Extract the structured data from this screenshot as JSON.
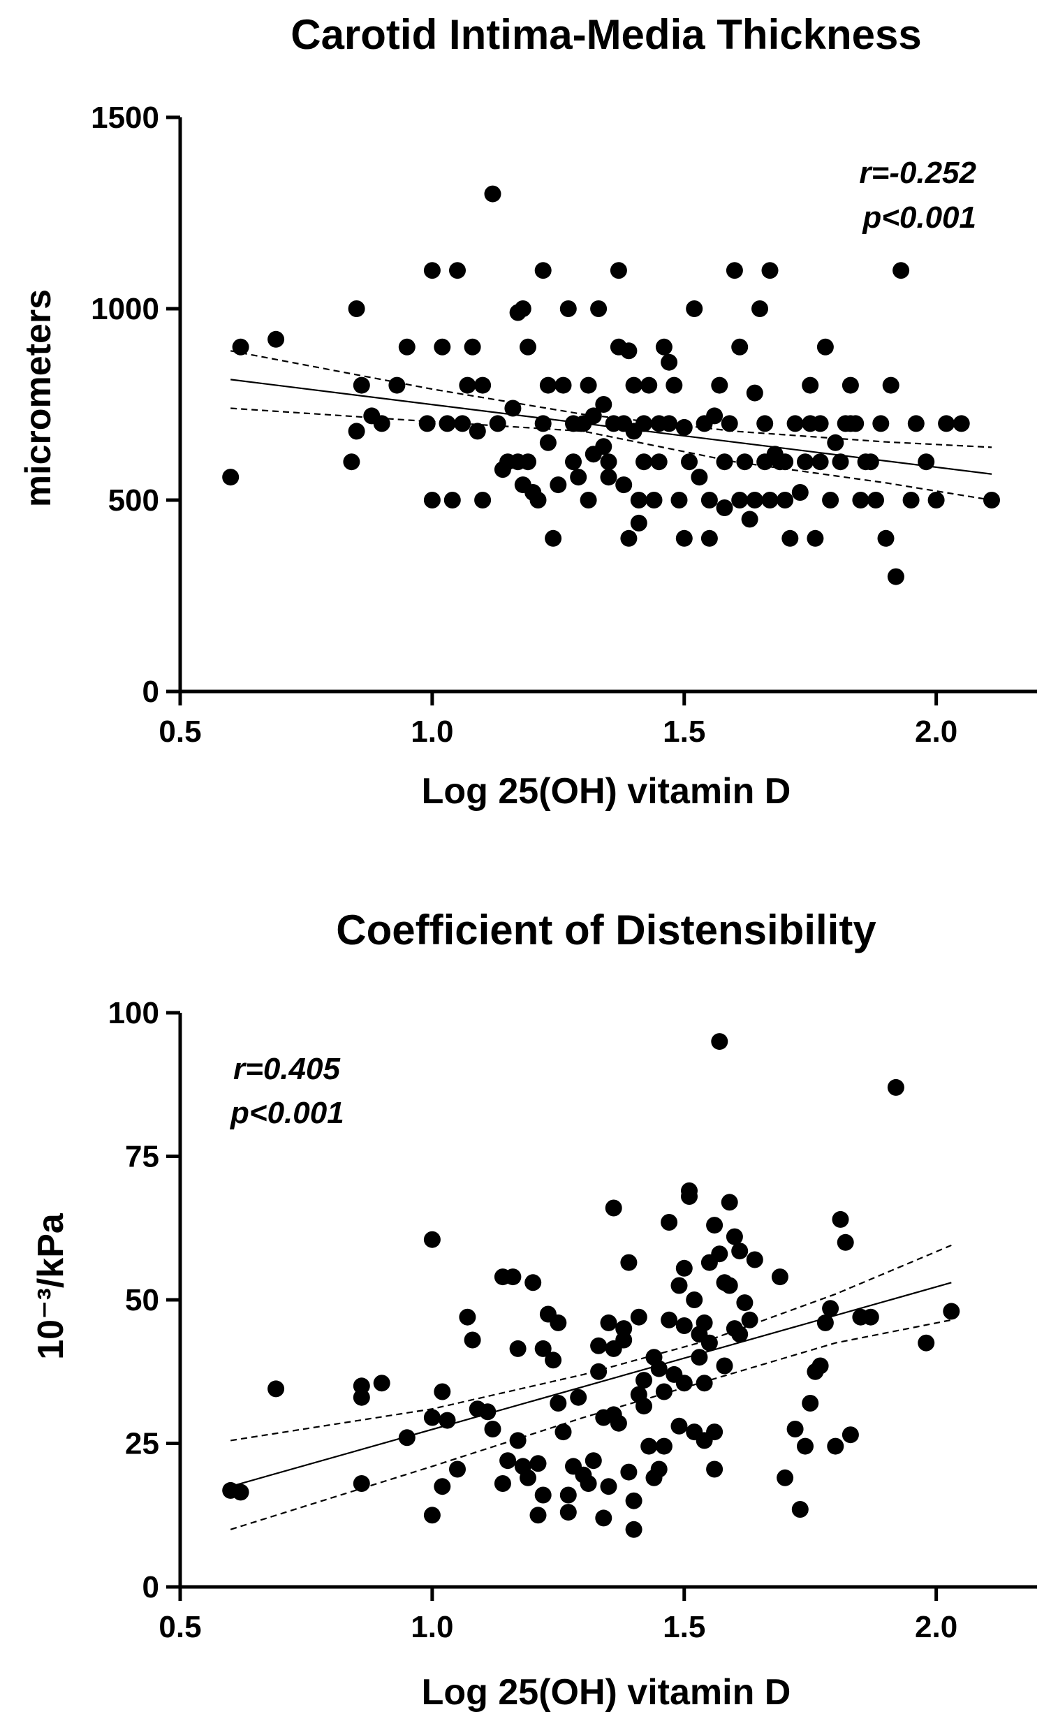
{
  "chart_data": [
    {
      "id": "cimt",
      "type": "scatter",
      "title": "Carotid Intima-Media Thickness",
      "xlabel": "Log 25(OH) vitamin D",
      "ylabel": "micrometers",
      "xlim": [
        0.5,
        2.2
      ],
      "ylim": [
        0,
        1500
      ],
      "xticks": [
        0.5,
        1.0,
        1.5,
        2.0
      ],
      "xtick_labels": [
        "0.5",
        "1.0",
        "1.5",
        "2.0"
      ],
      "yticks": [
        0,
        500,
        1000,
        1500
      ],
      "ytick_labels": [
        "0",
        "500",
        "1000",
        "1500"
      ],
      "annotation": {
        "r": "r=-0.252",
        "p": "p<0.001",
        "position": "top-right"
      },
      "fit": {
        "x": [
          0.6,
          2.11
        ],
        "y": [
          815,
          568
        ]
      },
      "ci_upper": [
        [
          0.6,
          890
        ],
        [
          1.0,
          790
        ],
        [
          1.3,
          724
        ],
        [
          1.6,
          680
        ],
        [
          1.9,
          652
        ],
        [
          2.11,
          638
        ]
      ],
      "ci_lower": [
        [
          0.6,
          740
        ],
        [
          1.0,
          705
        ],
        [
          1.3,
          680
        ],
        [
          1.6,
          600
        ],
        [
          1.9,
          545
        ],
        [
          2.11,
          500
        ]
      ],
      "points": [
        [
          0.6,
          560
        ],
        [
          0.62,
          900
        ],
        [
          0.69,
          920
        ],
        [
          0.84,
          600
        ],
        [
          0.85,
          680
        ],
        [
          0.85,
          1000
        ],
        [
          0.86,
          800
        ],
        [
          0.88,
          720
        ],
        [
          0.9,
          700
        ],
        [
          0.93,
          800
        ],
        [
          0.95,
          900
        ],
        [
          0.99,
          700
        ],
        [
          1.0,
          1100
        ],
        [
          1.0,
          500
        ],
        [
          1.02,
          900
        ],
        [
          1.03,
          700
        ],
        [
          1.04,
          500
        ],
        [
          1.05,
          1100
        ],
        [
          1.06,
          700
        ],
        [
          1.07,
          800
        ],
        [
          1.08,
          900
        ],
        [
          1.09,
          680
        ],
        [
          1.1,
          800
        ],
        [
          1.1,
          500
        ],
        [
          1.12,
          1300
        ],
        [
          1.13,
          700
        ],
        [
          1.14,
          580
        ],
        [
          1.15,
          600
        ],
        [
          1.16,
          740
        ],
        [
          1.17,
          990
        ],
        [
          1.17,
          600
        ],
        [
          1.18,
          540
        ],
        [
          1.18,
          1000
        ],
        [
          1.19,
          900
        ],
        [
          1.19,
          600
        ],
        [
          1.2,
          520
        ],
        [
          1.21,
          500
        ],
        [
          1.22,
          1100
        ],
        [
          1.22,
          700
        ],
        [
          1.23,
          800
        ],
        [
          1.23,
          650
        ],
        [
          1.24,
          400
        ],
        [
          1.25,
          540
        ],
        [
          1.26,
          800
        ],
        [
          1.27,
          1000
        ],
        [
          1.28,
          600
        ],
        [
          1.28,
          700
        ],
        [
          1.29,
          560
        ],
        [
          1.3,
          700
        ],
        [
          1.31,
          500
        ],
        [
          1.31,
          800
        ],
        [
          1.32,
          620
        ],
        [
          1.32,
          720
        ],
        [
          1.33,
          1000
        ],
        [
          1.34,
          750
        ],
        [
          1.34,
          640
        ],
        [
          1.35,
          560
        ],
        [
          1.35,
          600
        ],
        [
          1.36,
          700
        ],
        [
          1.37,
          1100
        ],
        [
          1.37,
          900
        ],
        [
          1.38,
          700
        ],
        [
          1.38,
          540
        ],
        [
          1.39,
          400
        ],
        [
          1.39,
          890
        ],
        [
          1.4,
          800
        ],
        [
          1.4,
          680
        ],
        [
          1.41,
          500
        ],
        [
          1.41,
          440
        ],
        [
          1.42,
          600
        ],
        [
          1.42,
          700
        ],
        [
          1.43,
          800
        ],
        [
          1.44,
          500
        ],
        [
          1.45,
          700
        ],
        [
          1.45,
          600
        ],
        [
          1.46,
          900
        ],
        [
          1.47,
          700
        ],
        [
          1.47,
          860
        ],
        [
          1.48,
          800
        ],
        [
          1.49,
          500
        ],
        [
          1.5,
          400
        ],
        [
          1.5,
          690
        ],
        [
          1.51,
          600
        ],
        [
          1.52,
          1000
        ],
        [
          1.53,
          560
        ],
        [
          1.54,
          700
        ],
        [
          1.55,
          500
        ],
        [
          1.55,
          400
        ],
        [
          1.56,
          720
        ],
        [
          1.57,
          800
        ],
        [
          1.58,
          600
        ],
        [
          1.58,
          480
        ],
        [
          1.59,
          700
        ],
        [
          1.6,
          1100
        ],
        [
          1.61,
          500
        ],
        [
          1.61,
          900
        ],
        [
          1.62,
          600
        ],
        [
          1.63,
          450
        ],
        [
          1.64,
          780
        ],
        [
          1.64,
          500
        ],
        [
          1.65,
          1000
        ],
        [
          1.66,
          600
        ],
        [
          1.66,
          700
        ],
        [
          1.67,
          1100
        ],
        [
          1.67,
          500
        ],
        [
          1.68,
          620
        ],
        [
          1.69,
          600
        ],
        [
          1.7,
          600
        ],
        [
          1.7,
          500
        ],
        [
          1.71,
          400
        ],
        [
          1.72,
          700
        ],
        [
          1.73,
          520
        ],
        [
          1.74,
          600
        ],
        [
          1.75,
          700
        ],
        [
          1.75,
          800
        ],
        [
          1.76,
          400
        ],
        [
          1.77,
          700
        ],
        [
          1.77,
          600
        ],
        [
          1.78,
          900
        ],
        [
          1.79,
          500
        ],
        [
          1.8,
          650
        ],
        [
          1.81,
          600
        ],
        [
          1.82,
          700
        ],
        [
          1.83,
          700
        ],
        [
          1.83,
          800
        ],
        [
          1.84,
          700
        ],
        [
          1.85,
          500
        ],
        [
          1.86,
          600
        ],
        [
          1.87,
          600
        ],
        [
          1.88,
          500
        ],
        [
          1.89,
          700
        ],
        [
          1.9,
          400
        ],
        [
          1.91,
          800
        ],
        [
          1.92,
          300
        ],
        [
          1.93,
          1100
        ],
        [
          1.95,
          500
        ],
        [
          1.96,
          700
        ],
        [
          1.98,
          600
        ],
        [
          2.0,
          500
        ],
        [
          2.02,
          700
        ],
        [
          2.05,
          700
        ],
        [
          2.11,
          500
        ]
      ]
    },
    {
      "id": "cod",
      "type": "scatter",
      "title": "Coefficient of Distensibility",
      "xlabel": "Log 25(OH) vitamin D",
      "ylabel": "10⁻³/kPa",
      "xlim": [
        0.5,
        2.2
      ],
      "ylim": [
        0,
        100
      ],
      "xticks": [
        0.5,
        1.0,
        1.5,
        2.0
      ],
      "xtick_labels": [
        "0.5",
        "1.0",
        "1.5",
        "2.0"
      ],
      "yticks": [
        0,
        25,
        50,
        75,
        100
      ],
      "ytick_labels": [
        "0",
        "25",
        "50",
        "75",
        "100"
      ],
      "annotation": {
        "r": "r=0.405",
        "p": "p<0.001",
        "position": "top-left"
      },
      "fit": {
        "x": [
          0.6,
          2.03
        ],
        "y": [
          17.5,
          53
        ]
      },
      "ci_upper": [
        [
          0.6,
          25.5
        ],
        [
          1.0,
          31
        ],
        [
          1.3,
          37
        ],
        [
          1.55,
          43
        ],
        [
          1.8,
          51
        ],
        [
          2.03,
          59.5
        ]
      ],
      "ci_lower": [
        [
          0.6,
          10
        ],
        [
          1.0,
          21
        ],
        [
          1.3,
          29.5
        ],
        [
          1.55,
          36
        ],
        [
          1.8,
          42.5
        ],
        [
          2.03,
          46.5
        ]
      ],
      "points": [
        [
          0.6,
          16.8
        ],
        [
          0.62,
          16.5
        ],
        [
          0.69,
          34.5
        ],
        [
          0.86,
          35
        ],
        [
          0.86,
          33
        ],
        [
          0.86,
          18
        ],
        [
          0.9,
          35.5
        ],
        [
          0.95,
          26
        ],
        [
          1.0,
          60.5
        ],
        [
          1.0,
          29.5
        ],
        [
          1.0,
          12.5
        ],
        [
          1.02,
          34
        ],
        [
          1.02,
          17.5
        ],
        [
          1.03,
          29
        ],
        [
          1.05,
          20.5
        ],
        [
          1.07,
          47
        ],
        [
          1.08,
          43
        ],
        [
          1.09,
          31
        ],
        [
          1.11,
          30.5
        ],
        [
          1.12,
          27.5
        ],
        [
          1.14,
          54
        ],
        [
          1.14,
          18
        ],
        [
          1.15,
          22
        ],
        [
          1.16,
          54
        ],
        [
          1.17,
          41.5
        ],
        [
          1.17,
          25.5
        ],
        [
          1.18,
          21
        ],
        [
          1.19,
          19
        ],
        [
          1.2,
          53
        ],
        [
          1.21,
          21.5
        ],
        [
          1.21,
          12.5
        ],
        [
          1.22,
          16
        ],
        [
          1.22,
          41.5
        ],
        [
          1.23,
          47.5
        ],
        [
          1.24,
          39.5
        ],
        [
          1.25,
          46
        ],
        [
          1.25,
          32
        ],
        [
          1.26,
          27
        ],
        [
          1.27,
          16
        ],
        [
          1.27,
          13
        ],
        [
          1.28,
          21
        ],
        [
          1.29,
          33
        ],
        [
          1.3,
          19.5
        ],
        [
          1.31,
          18
        ],
        [
          1.32,
          22
        ],
        [
          1.33,
          42
        ],
        [
          1.33,
          37.5
        ],
        [
          1.34,
          29.5
        ],
        [
          1.34,
          12
        ],
        [
          1.35,
          17.5
        ],
        [
          1.35,
          46
        ],
        [
          1.36,
          66
        ],
        [
          1.36,
          41.5
        ],
        [
          1.36,
          30
        ],
        [
          1.37,
          28.5
        ],
        [
          1.38,
          45
        ],
        [
          1.38,
          43
        ],
        [
          1.39,
          56.5
        ],
        [
          1.39,
          20
        ],
        [
          1.4,
          15
        ],
        [
          1.4,
          10
        ],
        [
          1.41,
          33.5
        ],
        [
          1.41,
          47
        ],
        [
          1.42,
          31.5
        ],
        [
          1.42,
          36
        ],
        [
          1.43,
          24.5
        ],
        [
          1.44,
          19
        ],
        [
          1.44,
          40
        ],
        [
          1.45,
          38
        ],
        [
          1.45,
          20.5
        ],
        [
          1.46,
          34
        ],
        [
          1.46,
          24.5
        ],
        [
          1.47,
          46.5
        ],
        [
          1.47,
          63.5
        ],
        [
          1.48,
          37
        ],
        [
          1.49,
          28
        ],
        [
          1.49,
          52.5
        ],
        [
          1.5,
          55.5
        ],
        [
          1.5,
          45.5
        ],
        [
          1.5,
          35.5
        ],
        [
          1.51,
          69
        ],
        [
          1.51,
          68
        ],
        [
          1.52,
          50
        ],
        [
          1.52,
          27
        ],
        [
          1.53,
          44
        ],
        [
          1.53,
          40
        ],
        [
          1.54,
          46
        ],
        [
          1.54,
          35.5
        ],
        [
          1.54,
          25.5
        ],
        [
          1.55,
          56.5
        ],
        [
          1.55,
          42.5
        ],
        [
          1.56,
          27
        ],
        [
          1.56,
          20.5
        ],
        [
          1.56,
          63
        ],
        [
          1.57,
          95
        ],
        [
          1.57,
          58
        ],
        [
          1.58,
          53
        ],
        [
          1.58,
          38.5
        ],
        [
          1.59,
          67
        ],
        [
          1.59,
          52.5
        ],
        [
          1.6,
          45
        ],
        [
          1.6,
          61
        ],
        [
          1.61,
          58.5
        ],
        [
          1.61,
          44
        ],
        [
          1.62,
          49.5
        ],
        [
          1.63,
          46.5
        ],
        [
          1.64,
          57
        ],
        [
          1.69,
          54
        ],
        [
          1.7,
          19
        ],
        [
          1.72,
          27.5
        ],
        [
          1.73,
          13.5
        ],
        [
          1.74,
          24.5
        ],
        [
          1.75,
          32
        ],
        [
          1.76,
          37.5
        ],
        [
          1.77,
          38.5
        ],
        [
          1.78,
          46
        ],
        [
          1.79,
          48.5
        ],
        [
          1.8,
          24.5
        ],
        [
          1.81,
          64
        ],
        [
          1.82,
          60
        ],
        [
          1.83,
          26.5
        ],
        [
          1.85,
          47
        ],
        [
          1.87,
          47
        ],
        [
          1.92,
          87
        ],
        [
          1.98,
          42.5
        ],
        [
          2.03,
          48
        ]
      ]
    }
  ]
}
